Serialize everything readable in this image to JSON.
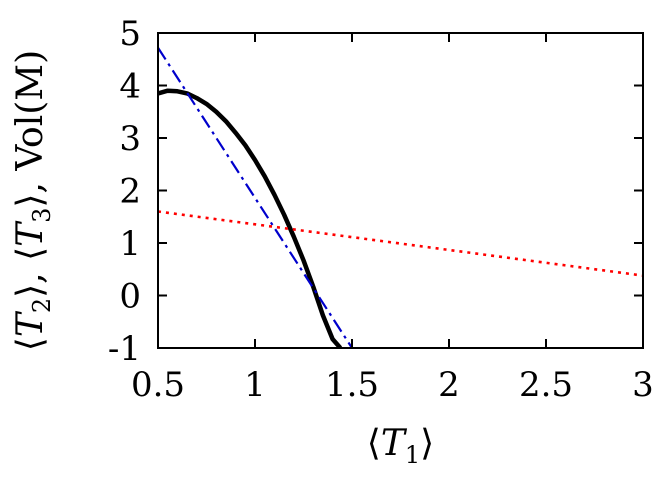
{
  "chart_data": {
    "type": "line",
    "xlabel": {
      "pre": "⟨",
      "var": "T",
      "sub": "1",
      "post": "⟩"
    },
    "ylabel": [
      {
        "pre": "⟨",
        "var": "T",
        "sub": "2",
        "post": "⟩, "
      },
      {
        "pre": "⟨",
        "var": "T",
        "sub": "3",
        "post": "⟩, "
      },
      {
        "pre": "Vol(M)",
        "var": "",
        "sub": "",
        "post": ""
      }
    ],
    "xlim": [
      0.5,
      3
    ],
    "ylim": [
      -1,
      5
    ],
    "xticks": [
      0.5,
      1,
      1.5,
      2,
      2.5,
      3
    ],
    "xtick_labels": [
      "0.5",
      "1",
      "1.5",
      "2",
      "2.5",
      "3"
    ],
    "yticks": [
      -1,
      0,
      1,
      2,
      3,
      4,
      5
    ],
    "ytick_labels": [
      "-1",
      "0",
      "1",
      "2",
      "3",
      "4",
      "5"
    ],
    "grid": false,
    "legend": "none",
    "series": [
      {
        "style": "solid",
        "color": "#000000",
        "x": [
          0.5,
          0.55,
          0.6,
          0.65,
          0.7,
          0.75,
          0.8,
          0.85,
          0.9,
          0.95,
          1.0,
          1.05,
          1.1,
          1.15,
          1.2,
          1.25,
          1.3,
          1.35,
          1.4,
          1.44
        ],
        "y": [
          3.85,
          3.9,
          3.89,
          3.85,
          3.76,
          3.65,
          3.5,
          3.32,
          3.1,
          2.86,
          2.58,
          2.27,
          1.92,
          1.54,
          1.12,
          0.67,
          0.17,
          -0.38,
          -0.83,
          -1.0
        ]
      },
      {
        "style": "dashdot",
        "color": "#0000cc",
        "x": [
          0.5,
          1.5
        ],
        "y": [
          4.72,
          -1.0
        ]
      },
      {
        "style": "dotted",
        "color": "#ff0000",
        "x": [
          0.5,
          3.0
        ],
        "y": [
          1.6,
          0.38
        ]
      }
    ]
  }
}
